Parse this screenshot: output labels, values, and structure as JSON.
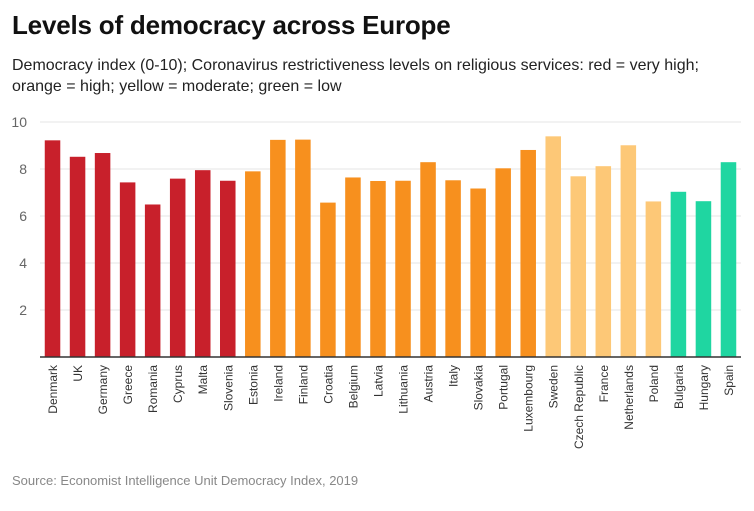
{
  "title": "Levels of democracy across Europe",
  "subtitle": "Democracy index (0-10); Coronavirus restrictiveness levels on religious services: red = very high; orange = high; yellow = moderate; green = low",
  "source": "Source: Economist Intelligence Unit Democracy Index, 2019",
  "colors": {
    "very_high": "#c8202b",
    "high": "#f7901e",
    "moderate": "#fdc877",
    "low": "#1fd6a1",
    "grid": "#e6e6e6",
    "axis": "#333333",
    "tick_text": "#666666"
  },
  "chart_data": {
    "type": "bar",
    "ylim": [
      0,
      10
    ],
    "yticks": [
      2,
      4,
      6,
      8,
      10
    ],
    "grid": true,
    "categories": [
      "Denmark",
      "UK",
      "Germany",
      "Greece",
      "Romania",
      "Cyprus",
      "Malta",
      "Slovenia",
      "Estonia",
      "Ireland",
      "Finland",
      "Croatia",
      "Belgium",
      "Latvia",
      "Lithuania",
      "Austria",
      "Italy",
      "Slovakia",
      "Portugal",
      "Luxembourg",
      "Sweden",
      "Czech Republic",
      "France",
      "Netherlands",
      "Poland",
      "Bulgaria",
      "Hungary",
      "Spain"
    ],
    "values": [
      9.22,
      8.52,
      8.68,
      7.43,
      6.49,
      7.59,
      7.95,
      7.5,
      7.9,
      9.24,
      9.25,
      6.57,
      7.64,
      7.49,
      7.5,
      8.29,
      7.52,
      7.17,
      8.03,
      8.81,
      9.39,
      7.69,
      8.12,
      9.01,
      6.62,
      7.03,
      6.63,
      8.29
    ],
    "levels": [
      "very_high",
      "very_high",
      "very_high",
      "very_high",
      "very_high",
      "very_high",
      "very_high",
      "very_high",
      "high",
      "high",
      "high",
      "high",
      "high",
      "high",
      "high",
      "high",
      "high",
      "high",
      "high",
      "high",
      "moderate",
      "moderate",
      "moderate",
      "moderate",
      "moderate",
      "low",
      "low",
      "low"
    ]
  }
}
